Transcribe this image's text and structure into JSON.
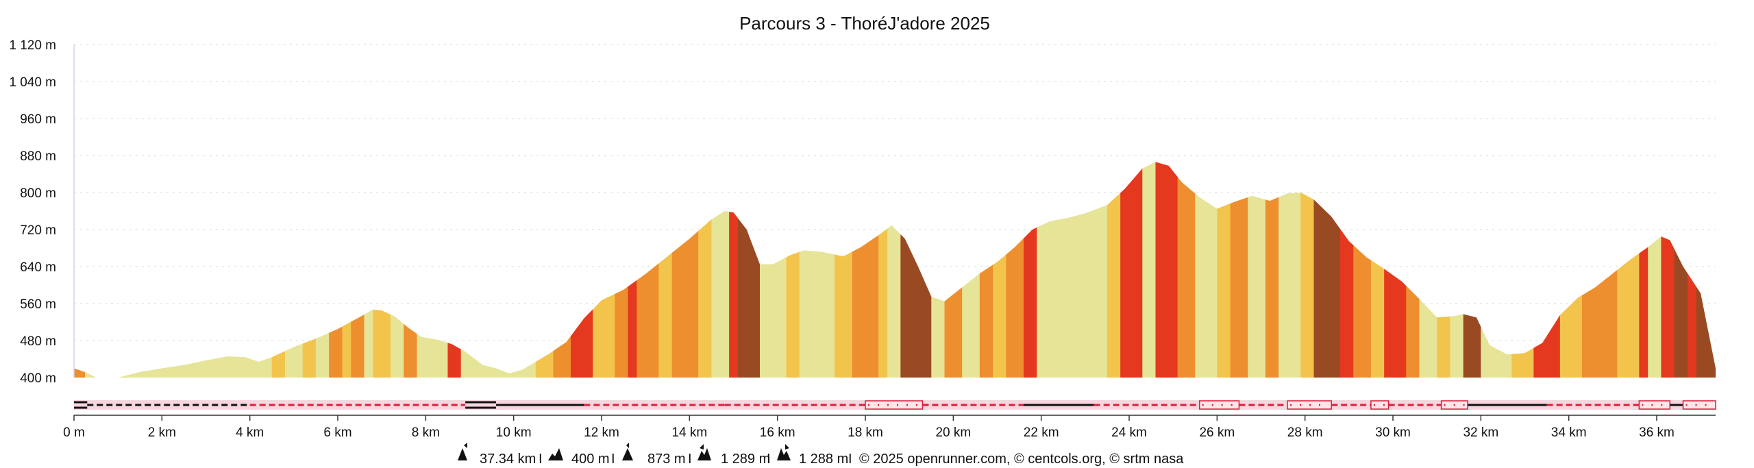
{
  "chart_data": {
    "type": "area",
    "title": "Parcours 3 - ThoréJ'adore 2025",
    "xlabel": "",
    "ylabel": "",
    "xlim": [
      0,
      37.34
    ],
    "ylim": [
      400,
      1120
    ],
    "grid": true,
    "legend": "none",
    "y_ticks": [
      {
        "value": 400,
        "label": "400 m"
      },
      {
        "value": 480,
        "label": "480 m"
      },
      {
        "value": 560,
        "label": "560 m"
      },
      {
        "value": 640,
        "label": "640 m"
      },
      {
        "value": 720,
        "label": "720 m"
      },
      {
        "value": 800,
        "label": "800 m"
      },
      {
        "value": 880,
        "label": "880 m"
      },
      {
        "value": 960,
        "label": "960 m"
      },
      {
        "value": 1040,
        "label": "1 040 m"
      },
      {
        "value": 1120,
        "label": "1 120 m"
      }
    ],
    "x_ticks": [
      {
        "value": 0,
        "label": "0 m"
      },
      {
        "value": 2,
        "label": "2 km"
      },
      {
        "value": 4,
        "label": "4 km"
      },
      {
        "value": 6,
        "label": "6 km"
      },
      {
        "value": 8,
        "label": "8 km"
      },
      {
        "value": 10,
        "label": "10 km"
      },
      {
        "value": 12,
        "label": "12 km"
      },
      {
        "value": 14,
        "label": "14 km"
      },
      {
        "value": 16,
        "label": "16 km"
      },
      {
        "value": 18,
        "label": "18 km"
      },
      {
        "value": 20,
        "label": "20 km"
      },
      {
        "value": 22,
        "label": "22 km"
      },
      {
        "value": 24,
        "label": "24 km"
      },
      {
        "value": 26,
        "label": "26 km"
      },
      {
        "value": 28,
        "label": "28 km"
      },
      {
        "value": 30,
        "label": "30 km"
      },
      {
        "value": 32,
        "label": "32 km"
      },
      {
        "value": 34,
        "label": "34 km"
      },
      {
        "value": 36,
        "label": "36 km"
      }
    ],
    "profile": [
      [
        0,
        420
      ],
      [
        0.3,
        410
      ],
      [
        0.5,
        400
      ],
      [
        1.0,
        400
      ],
      [
        1.5,
        412
      ],
      [
        2.0,
        420
      ],
      [
        2.5,
        427
      ],
      [
        3.0,
        437
      ],
      [
        3.5,
        446
      ],
      [
        3.9,
        444
      ],
      [
        4.2,
        434
      ],
      [
        4.5,
        444
      ],
      [
        5.0,
        466
      ],
      [
        5.5,
        484
      ],
      [
        6.0,
        505
      ],
      [
        6.5,
        531
      ],
      [
        6.8,
        547
      ],
      [
        7.0,
        545
      ],
      [
        7.3,
        532
      ],
      [
        7.6,
        508
      ],
      [
        7.9,
        488
      ],
      [
        8.3,
        481
      ],
      [
        8.6,
        472
      ],
      [
        8.9,
        456
      ],
      [
        9.3,
        427
      ],
      [
        9.6,
        420
      ],
      [
        9.9,
        409
      ],
      [
        10.2,
        417
      ],
      [
        10.5,
        434
      ],
      [
        10.8,
        451
      ],
      [
        11.2,
        477
      ],
      [
        11.6,
        528
      ],
      [
        12.0,
        567
      ],
      [
        12.5,
        590
      ],
      [
        13.0,
        624
      ],
      [
        13.5,
        662
      ],
      [
        14.0,
        700
      ],
      [
        14.5,
        742
      ],
      [
        14.8,
        760
      ],
      [
        15.0,
        757
      ],
      [
        15.3,
        720
      ],
      [
        15.6,
        645
      ],
      [
        15.9,
        645
      ],
      [
        16.3,
        665
      ],
      [
        16.6,
        675
      ],
      [
        17.0,
        672
      ],
      [
        17.5,
        662
      ],
      [
        17.9,
        682
      ],
      [
        18.3,
        708
      ],
      [
        18.6,
        729
      ],
      [
        18.9,
        700
      ],
      [
        19.2,
        640
      ],
      [
        19.5,
        575
      ],
      [
        19.8,
        565
      ],
      [
        20.2,
        595
      ],
      [
        20.6,
        625
      ],
      [
        21.0,
        650
      ],
      [
        21.4,
        682
      ],
      [
        21.8,
        720
      ],
      [
        22.2,
        738
      ],
      [
        22.6,
        745
      ],
      [
        23.0,
        755
      ],
      [
        23.5,
        773
      ],
      [
        23.9,
        808
      ],
      [
        24.3,
        852
      ],
      [
        24.6,
        866
      ],
      [
        24.9,
        858
      ],
      [
        25.2,
        822
      ],
      [
        25.6,
        790
      ],
      [
        26.0,
        765
      ],
      [
        26.4,
        780
      ],
      [
        26.8,
        793
      ],
      [
        27.2,
        782
      ],
      [
        27.6,
        798
      ],
      [
        27.9,
        800
      ],
      [
        28.2,
        785
      ],
      [
        28.6,
        748
      ],
      [
        29.0,
        695
      ],
      [
        29.4,
        660
      ],
      [
        29.8,
        635
      ],
      [
        30.2,
        608
      ],
      [
        30.6,
        570
      ],
      [
        31.0,
        530
      ],
      [
        31.4,
        533
      ],
      [
        31.6,
        537
      ],
      [
        31.9,
        530
      ],
      [
        32.2,
        470
      ],
      [
        32.6,
        450
      ],
      [
        33.0,
        453
      ],
      [
        33.4,
        475
      ],
      [
        33.8,
        535
      ],
      [
        34.2,
        572
      ],
      [
        34.6,
        595
      ],
      [
        35.0,
        625
      ],
      [
        35.4,
        655
      ],
      [
        35.8,
        682
      ],
      [
        36.1,
        705
      ],
      [
        36.3,
        697
      ],
      [
        36.6,
        640
      ],
      [
        37.0,
        582
      ],
      [
        37.34,
        420
      ]
    ],
    "slope_colors": {
      "flat": "#e6e497",
      "gentle": "#f2c44c",
      "moderate": "#ed8f2e",
      "steep": "#e4381f",
      "very_steep": "#9a4a22"
    },
    "slope_bands": [
      [
        0,
        0.25,
        "moderate"
      ],
      [
        0.25,
        3.9,
        "flat"
      ],
      [
        3.9,
        4.5,
        "flat"
      ],
      [
        4.5,
        4.8,
        "gentle"
      ],
      [
        4.8,
        5.2,
        "flat"
      ],
      [
        5.2,
        5.5,
        "gentle"
      ],
      [
        5.5,
        5.8,
        "flat"
      ],
      [
        5.8,
        6.1,
        "moderate"
      ],
      [
        6.1,
        6.3,
        "gentle"
      ],
      [
        6.3,
        6.6,
        "moderate"
      ],
      [
        6.6,
        6.8,
        "flat"
      ],
      [
        6.8,
        7.2,
        "gentle"
      ],
      [
        7.2,
        7.5,
        "flat"
      ],
      [
        7.5,
        7.8,
        "moderate"
      ],
      [
        7.8,
        8.2,
        "flat"
      ],
      [
        8.2,
        8.5,
        "flat"
      ],
      [
        8.5,
        8.8,
        "steep"
      ],
      [
        8.8,
        9.2,
        "flat"
      ],
      [
        9.2,
        9.9,
        "flat"
      ],
      [
        9.9,
        10.5,
        "flat"
      ],
      [
        10.5,
        10.9,
        "gentle"
      ],
      [
        10.9,
        11.3,
        "moderate"
      ],
      [
        11.3,
        11.8,
        "steep"
      ],
      [
        11.8,
        12.3,
        "gentle"
      ],
      [
        12.3,
        12.6,
        "moderate"
      ],
      [
        12.6,
        12.8,
        "steep"
      ],
      [
        12.8,
        13.3,
        "moderate"
      ],
      [
        13.3,
        13.6,
        "gentle"
      ],
      [
        13.6,
        14.2,
        "moderate"
      ],
      [
        14.2,
        14.5,
        "gentle"
      ],
      [
        14.5,
        14.9,
        "flat"
      ],
      [
        14.9,
        15.1,
        "steep"
      ],
      [
        15.1,
        15.6,
        "very_steep"
      ],
      [
        15.6,
        16.2,
        "flat"
      ],
      [
        16.2,
        16.5,
        "gentle"
      ],
      [
        16.5,
        17.0,
        "flat"
      ],
      [
        17.0,
        17.3,
        "flat"
      ],
      [
        17.3,
        17.7,
        "gentle"
      ],
      [
        17.7,
        18.3,
        "moderate"
      ],
      [
        18.3,
        18.5,
        "gentle"
      ],
      [
        18.5,
        18.8,
        "flat"
      ],
      [
        18.8,
        19.5,
        "very_steep"
      ],
      [
        19.5,
        19.8,
        "flat"
      ],
      [
        19.8,
        20.2,
        "moderate"
      ],
      [
        20.2,
        20.6,
        "flat"
      ],
      [
        20.6,
        20.9,
        "moderate"
      ],
      [
        20.9,
        21.2,
        "gentle"
      ],
      [
        21.2,
        21.6,
        "moderate"
      ],
      [
        21.6,
        21.9,
        "steep"
      ],
      [
        21.9,
        23.5,
        "flat"
      ],
      [
        23.5,
        23.8,
        "gentle"
      ],
      [
        23.8,
        24.3,
        "steep"
      ],
      [
        24.3,
        24.6,
        "flat"
      ],
      [
        24.6,
        25.1,
        "steep"
      ],
      [
        25.1,
        25.5,
        "moderate"
      ],
      [
        25.5,
        26.0,
        "flat"
      ],
      [
        26.0,
        26.3,
        "gentle"
      ],
      [
        26.3,
        26.7,
        "moderate"
      ],
      [
        26.7,
        27.1,
        "flat"
      ],
      [
        27.1,
        27.4,
        "moderate"
      ],
      [
        27.4,
        27.9,
        "flat"
      ],
      [
        27.9,
        28.2,
        "gentle"
      ],
      [
        28.2,
        28.8,
        "very_steep"
      ],
      [
        28.8,
        29.1,
        "steep"
      ],
      [
        29.1,
        29.5,
        "moderate"
      ],
      [
        29.5,
        29.8,
        "gentle"
      ],
      [
        29.8,
        30.3,
        "steep"
      ],
      [
        30.3,
        30.6,
        "moderate"
      ],
      [
        30.6,
        31.0,
        "flat"
      ],
      [
        31.0,
        31.3,
        "gentle"
      ],
      [
        31.3,
        31.6,
        "flat"
      ],
      [
        31.6,
        32.0,
        "very_steep"
      ],
      [
        32.0,
        32.7,
        "flat"
      ],
      [
        32.7,
        33.2,
        "gentle"
      ],
      [
        33.2,
        33.8,
        "steep"
      ],
      [
        33.8,
        34.3,
        "gentle"
      ],
      [
        34.3,
        35.1,
        "moderate"
      ],
      [
        35.1,
        35.6,
        "gentle"
      ],
      [
        35.6,
        35.8,
        "steep"
      ],
      [
        35.8,
        36.1,
        "flat"
      ],
      [
        36.1,
        36.4,
        "steep"
      ],
      [
        36.4,
        36.7,
        "very_steep"
      ],
      [
        36.7,
        36.9,
        "steep"
      ],
      [
        36.9,
        37.34,
        "very_steep"
      ]
    ],
    "surface_track": [
      {
        "from": 0,
        "to": 0.3,
        "style": "double"
      },
      {
        "from": 0.3,
        "to": 4.0,
        "style": "dash-black"
      },
      {
        "from": 4.0,
        "to": 8.9,
        "style": "dash-red"
      },
      {
        "from": 8.9,
        "to": 9.6,
        "style": "double"
      },
      {
        "from": 9.6,
        "to": 11.6,
        "style": "solid-black"
      },
      {
        "from": 11.6,
        "to": 14.8,
        "style": "dash-red"
      },
      {
        "from": 14.8,
        "to": 18.0,
        "style": "dash-red-box"
      },
      {
        "from": 18.0,
        "to": 19.3,
        "style": "dotted-box"
      },
      {
        "from": 19.3,
        "to": 21.6,
        "style": "dash-red"
      },
      {
        "from": 21.6,
        "to": 23.2,
        "style": "solid-black"
      },
      {
        "from": 23.2,
        "to": 25.6,
        "style": "dash-red"
      },
      {
        "from": 25.6,
        "to": 26.5,
        "style": "dotted-box"
      },
      {
        "from": 26.5,
        "to": 27.6,
        "style": "dash-red"
      },
      {
        "from": 27.6,
        "to": 28.6,
        "style": "dotted-box"
      },
      {
        "from": 28.6,
        "to": 29.5,
        "style": "dash-red"
      },
      {
        "from": 29.5,
        "to": 29.9,
        "style": "dotted-box"
      },
      {
        "from": 29.9,
        "to": 31.1,
        "style": "dash-red"
      },
      {
        "from": 31.1,
        "to": 31.7,
        "style": "dotted-box"
      },
      {
        "from": 31.7,
        "to": 33.5,
        "style": "solid-black"
      },
      {
        "from": 33.5,
        "to": 35.6,
        "style": "dash-red"
      },
      {
        "from": 35.6,
        "to": 36.3,
        "style": "dotted-box"
      },
      {
        "from": 36.3,
        "to": 36.6,
        "style": "solid-black"
      },
      {
        "from": 36.6,
        "to": 37.34,
        "style": "dotted-box"
      }
    ]
  },
  "footer": {
    "distance": "37.34 km",
    "ascent_label": "400 m",
    "max_alt": "873 m",
    "total_ascent": "1 289 m",
    "total_descent": "1 288 m",
    "credits": "© 2025 openrunner.com, © centcols.org, © srtm nasa",
    "icon_colors": "#111111"
  }
}
